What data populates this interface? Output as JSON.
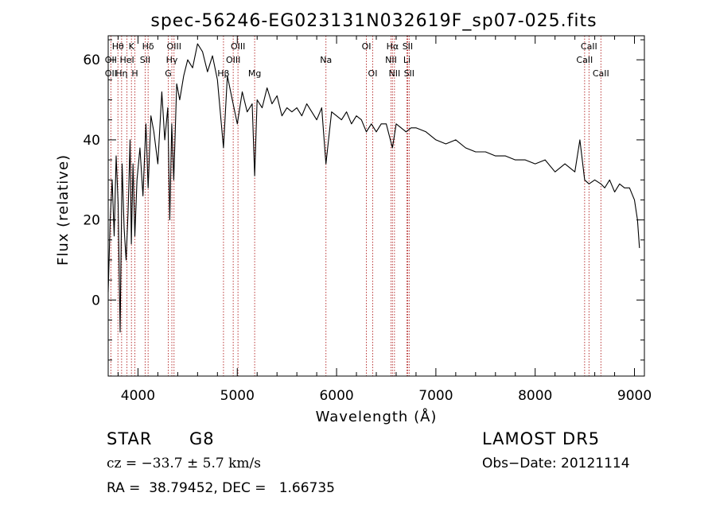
{
  "chart_data": {
    "type": "line",
    "title": "spec-56246-EG023131N032619F_sp07-025.fits",
    "xlabel": "Wavelength (Å)",
    "ylabel": "Flux (relative)",
    "xlim": [
      3700,
      9100
    ],
    "ylim": [
      -19,
      66
    ],
    "x_ticks": [
      4000,
      5000,
      6000,
      7000,
      8000,
      9000
    ],
    "y_ticks": [
      0,
      20,
      40,
      60
    ],
    "grid": false,
    "series": [
      {
        "x": [
          3700,
          3720,
          3740,
          3760,
          3780,
          3800,
          3820,
          3840,
          3860,
          3880,
          3900,
          3920,
          3933,
          3950,
          3968,
          3990,
          4020,
          4050,
          4080,
          4102,
          4130,
          4160,
          4200,
          4240,
          4270,
          4300,
          4320,
          4340,
          4360,
          4390,
          4420,
          4460,
          4500,
          4550,
          4600,
          4650,
          4700,
          4750,
          4800,
          4861,
          4900,
          4950,
          5000,
          5050,
          5100,
          5150,
          5175,
          5200,
          5250,
          5300,
          5350,
          5400,
          5450,
          5500,
          5550,
          5600,
          5650,
          5700,
          5750,
          5800,
          5850,
          5893,
          5950,
          6000,
          6050,
          6100,
          6150,
          6200,
          6250,
          6300,
          6350,
          6400,
          6450,
          6500,
          6563,
          6600,
          6650,
          6700,
          6750,
          6800,
          6900,
          7000,
          7100,
          7200,
          7300,
          7400,
          7500,
          7600,
          7700,
          7800,
          7900,
          8000,
          8100,
          8200,
          8300,
          8400,
          8450,
          8498,
          8542,
          8600,
          8662,
          8700,
          8750,
          8800,
          8850,
          8900,
          8950,
          9000,
          9030,
          9050
        ],
        "values": [
          2,
          20,
          30,
          16,
          36,
          24,
          -8,
          34,
          18,
          10,
          22,
          40,
          14,
          34,
          16,
          30,
          38,
          26,
          44,
          28,
          46,
          42,
          34,
          52,
          40,
          48,
          20,
          44,
          30,
          54,
          50,
          56,
          60,
          58,
          64,
          62,
          57,
          61,
          55,
          38,
          56,
          50,
          44,
          52,
          47,
          49,
          31,
          50,
          48,
          53,
          49,
          51,
          46,
          48,
          47,
          48,
          46,
          49,
          47,
          45,
          48,
          34,
          47,
          46,
          45,
          47,
          44,
          46,
          45,
          42,
          44,
          42,
          44,
          44,
          38,
          44,
          43,
          42,
          43,
          43,
          42,
          40,
          39,
          40,
          38,
          37,
          37,
          36,
          36,
          35,
          35,
          34,
          35,
          32,
          34,
          32,
          40,
          30,
          29,
          30,
          29,
          28,
          30,
          27,
          29,
          28,
          28,
          25,
          20,
          13
        ]
      }
    ],
    "line_markers": [
      {
        "label": "Hθ",
        "x": 3798,
        "row": 0
      },
      {
        "label": "K",
        "x": 3934,
        "row": 0
      },
      {
        "label": "Hδ",
        "x": 4102,
        "row": 0
      },
      {
        "label": "OII",
        "x": 3727,
        "row": 1
      },
      {
        "label": "HeI",
        "x": 3889,
        "row": 1
      },
      {
        "label": "SII",
        "x": 4072,
        "row": 1
      },
      {
        "label": "OII",
        "x": 3727,
        "row": 2
      },
      {
        "label": "Hη",
        "x": 3835,
        "row": 2
      },
      {
        "label": "H",
        "x": 3969,
        "row": 2
      },
      {
        "label": "OIII",
        "x": 4363,
        "row": 0
      },
      {
        "label": "Hγ",
        "x": 4341,
        "row": 1
      },
      {
        "label": "G",
        "x": 4305,
        "row": 2
      },
      {
        "label": "OIII",
        "x": 5007,
        "row": 0
      },
      {
        "label": "OIII",
        "x": 4959,
        "row": 1
      },
      {
        "label": "Hβ",
        "x": 4861,
        "row": 2
      },
      {
        "label": "Mg",
        "x": 5175,
        "row": 2
      },
      {
        "label": "Na",
        "x": 5893,
        "row": 1
      },
      {
        "label": "OI",
        "x": 6300,
        "row": 0
      },
      {
        "label": "OI",
        "x": 6364,
        "row": 2
      },
      {
        "label": "Hα",
        "x": 6563,
        "row": 0
      },
      {
        "label": "SII",
        "x": 6716,
        "row": 0
      },
      {
        "label": "NII",
        "x": 6548,
        "row": 1
      },
      {
        "label": "Li",
        "x": 6708,
        "row": 1
      },
      {
        "label": "NII",
        "x": 6583,
        "row": 2
      },
      {
        "label": "SII",
        "x": 6731,
        "row": 2
      },
      {
        "label": "CaII",
        "x": 8542,
        "row": 0
      },
      {
        "label": "CaII",
        "x": 8498,
        "row": 1
      },
      {
        "label": "CaII",
        "x": 8662,
        "row": 2
      }
    ]
  },
  "info": {
    "object_class": "STAR",
    "subclass": "G8",
    "survey": "LAMOST DR5",
    "velocity": "cz = −33.7 ± 5.7 km/s",
    "obs_date": "Obs−Date: 20121114",
    "coords": "RA =  38.79452, DEC =   1.66735"
  }
}
